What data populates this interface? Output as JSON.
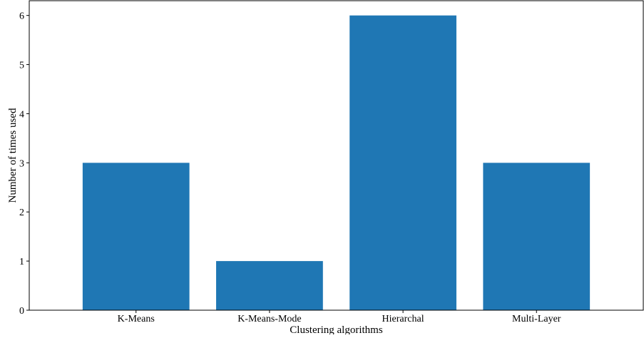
{
  "chart_data": {
    "type": "bar",
    "categories": [
      "K-Means",
      "K-Means-Mode",
      "Hierarchal",
      "Multi-Layer"
    ],
    "values": [
      3,
      1,
      6,
      3
    ],
    "title": "",
    "xlabel": "Clustering algorithms",
    "ylabel": "Number of times used",
    "ylim": [
      0,
      6.3
    ],
    "yticks": [
      0,
      1,
      2,
      3,
      4,
      5,
      6
    ],
    "grid": false,
    "legend": "none",
    "bar_color": "#1f77b4"
  }
}
